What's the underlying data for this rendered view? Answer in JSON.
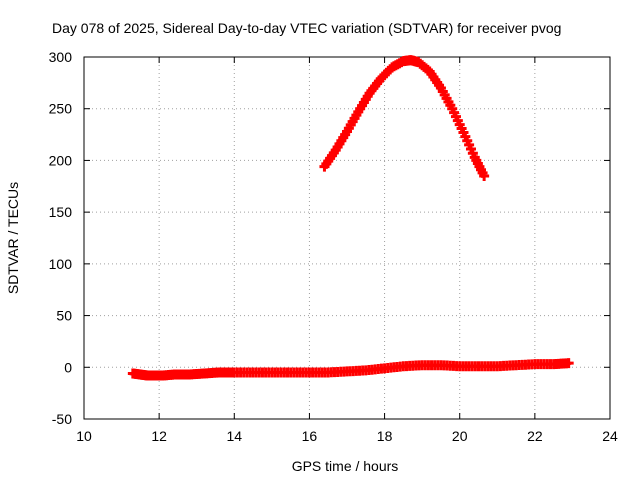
{
  "chart_data": {
    "type": "scatter",
    "title": "Day 078 of 2025, Sidereal Day-to-day VTEC variation (SDTVAR) for receiver pvog",
    "xlabel": "GPS time / hours",
    "ylabel": "SDTVAR / TECUs",
    "xlim": [
      10,
      24
    ],
    "ylim": [
      -50,
      300
    ],
    "xticks": [
      "10",
      "12",
      "14",
      "16",
      "18",
      "20",
      "22",
      "24"
    ],
    "yticks": [
      "-50",
      "0",
      "50",
      "100",
      "150",
      "200",
      "250",
      "300"
    ],
    "grid": true,
    "marker": "plus",
    "color": "#ff0000",
    "series": [
      {
        "name": "arc-1",
        "x": [
          16.4,
          16.7,
          17.0,
          17.3,
          17.6,
          17.9,
          18.2,
          18.5,
          18.7,
          18.9,
          19.2,
          19.5,
          19.8,
          20.1,
          20.4,
          20.65
        ],
        "y": [
          194,
          210,
          228,
          247,
          265,
          279,
          290,
          296,
          297,
          295,
          286,
          270,
          250,
          227,
          203,
          185
        ]
      },
      {
        "name": "arc-2",
        "x": [
          11.3,
          11.5,
          11.7,
          11.9,
          12.1,
          12.4,
          12.8,
          13.2,
          13.6,
          14.0,
          14.5,
          15.0,
          15.5,
          16.0,
          16.5,
          17.0,
          17.5,
          18.0,
          18.5,
          19.0,
          19.5,
          20.0,
          20.5,
          21.0,
          21.5,
          22.0,
          22.5,
          22.9
        ],
        "y": [
          -6,
          -7,
          -8,
          -8,
          -8,
          -7,
          -7,
          -6,
          -5,
          -5,
          -5,
          -5,
          -5,
          -5,
          -5,
          -4,
          -3,
          -1,
          1,
          2,
          2,
          1,
          1,
          1,
          2,
          3,
          3,
          4
        ]
      }
    ]
  }
}
